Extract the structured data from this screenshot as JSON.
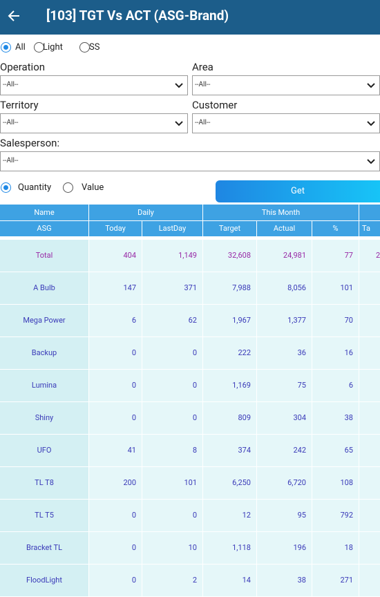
{
  "header": {
    "title": "[103] TGT Vs ACT (ASG-Brand)"
  },
  "filters": {
    "type_options": [
      "All",
      "Light",
      "SS"
    ],
    "operation": {
      "label": "Operation",
      "value": "--All--"
    },
    "area": {
      "label": "Area",
      "value": "--All--"
    },
    "territory": {
      "label": "Territory",
      "value": "--All--"
    },
    "customer": {
      "label": "Customer",
      "value": "--All--"
    },
    "salesperson": {
      "label": "Salesperson:",
      "value": "--All--"
    },
    "measure_options": [
      "Quantity",
      "Value"
    ],
    "get_button": "Get"
  },
  "table": {
    "group_headers": [
      "Name",
      "Daily",
      "This Month"
    ],
    "column_headers": [
      "ASG",
      "Today",
      "LastDay",
      "Target",
      "Actual",
      "%",
      "Ta"
    ],
    "rows": [
      [
        "Total",
        "404",
        "1,149",
        "32,608",
        "24,981",
        "77",
        "2"
      ],
      [
        "A Bulb",
        "147",
        "371",
        "7,988",
        "8,056",
        "101"
      ],
      [
        "Mega Power",
        "6",
        "62",
        "1,967",
        "1,377",
        "70"
      ],
      [
        "Backup",
        "0",
        "0",
        "222",
        "36",
        "16"
      ],
      [
        "Lumina",
        "0",
        "0",
        "1,169",
        "75",
        "6"
      ],
      [
        "Shiny",
        "0",
        "0",
        "809",
        "304",
        "38"
      ],
      [
        "UFO",
        "41",
        "8",
        "374",
        "242",
        "65"
      ],
      [
        "TL T8",
        "200",
        "101",
        "6,250",
        "6,720",
        "108"
      ],
      [
        "TL T5",
        "0",
        "0",
        "12",
        "95",
        "792"
      ],
      [
        "Bracket TL",
        "0",
        "10",
        "1,118",
        "196",
        "18"
      ],
      [
        "FloodLight",
        "0",
        "2",
        "14",
        "38",
        "271"
      ]
    ]
  }
}
